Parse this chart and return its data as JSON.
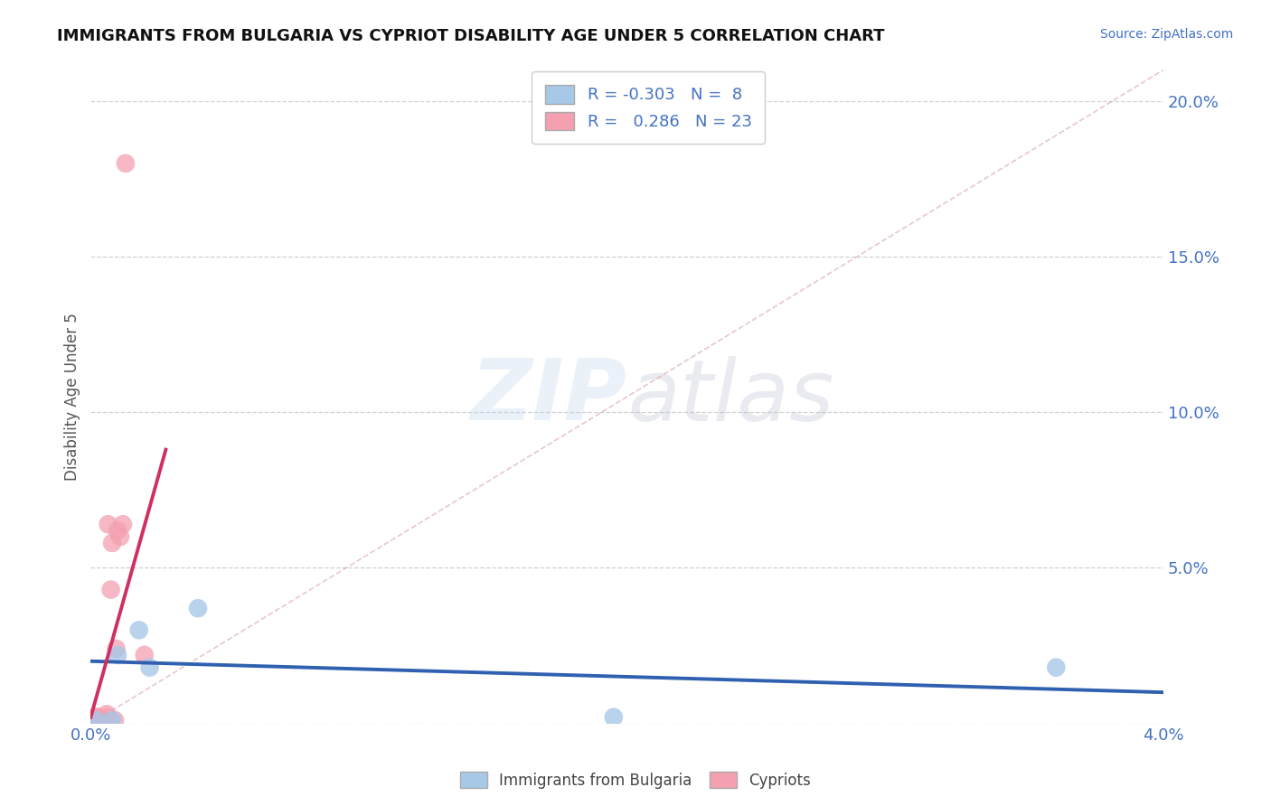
{
  "title": "IMMIGRANTS FROM BULGARIA VS CYPRIOT DISABILITY AGE UNDER 5 CORRELATION CHART",
  "source": "Source: ZipAtlas.com",
  "ylabel": "Disability Age Under 5",
  "xlim": [
    0.0,
    0.04
  ],
  "ylim": [
    0.0,
    0.21
  ],
  "xticks": [
    0.0,
    0.005,
    0.01,
    0.015,
    0.02,
    0.025,
    0.03,
    0.035,
    0.04
  ],
  "yticks": [
    0.0,
    0.05,
    0.1,
    0.15,
    0.2
  ],
  "grid_color": "#d0d0d0",
  "bg_color": "#ffffff",
  "legend_r_blue": "-0.303",
  "legend_n_blue": "8",
  "legend_r_pink": "0.286",
  "legend_n_pink": "23",
  "blue_color": "#a8c8e8",
  "pink_color": "#f4a0b0",
  "blue_line_color": "#3060b0",
  "pink_line_color": "#d03060",
  "ref_line_color": "#d090a0",
  "blue_scatter": [
    [
      0.0002,
      0.001
    ],
    [
      0.0008,
      0.001
    ],
    [
      0.001,
      0.022
    ],
    [
      0.0018,
      0.03
    ],
    [
      0.0022,
      0.018
    ],
    [
      0.004,
      0.037
    ],
    [
      0.0195,
      0.002
    ],
    [
      0.036,
      0.018
    ]
  ],
  "pink_scatter": [
    [
      5e-05,
      0.0
    ],
    [
      8e-05,
      0.001
    ],
    [
      0.0001,
      0.001
    ],
    [
      0.0001,
      0.001
    ],
    [
      0.00012,
      0.002
    ],
    [
      0.00015,
      0.001
    ],
    [
      0.0002,
      0.001
    ],
    [
      0.00025,
      0.002
    ],
    [
      0.0003,
      0.002
    ],
    [
      0.0005,
      0.001
    ],
    [
      0.0006,
      0.003
    ],
    [
      0.00065,
      0.002
    ],
    [
      0.00065,
      0.064
    ],
    [
      0.0007,
      0.001
    ],
    [
      0.00075,
      0.043
    ],
    [
      0.0008,
      0.058
    ],
    [
      0.0009,
      0.001
    ],
    [
      0.00095,
      0.024
    ],
    [
      0.001,
      0.062
    ],
    [
      0.0011,
      0.06
    ],
    [
      0.0012,
      0.064
    ],
    [
      0.0013,
      0.18
    ],
    [
      0.002,
      0.022
    ]
  ],
  "blue_line_x": [
    0.0,
    0.04
  ],
  "blue_line_y": [
    0.02,
    0.01
  ],
  "pink_line_x": [
    0.0,
    0.0028
  ],
  "pink_line_y": [
    0.002,
    0.088
  ],
  "ref_line_x": [
    0.0,
    0.04
  ],
  "ref_line_y": [
    0.0,
    0.21
  ]
}
